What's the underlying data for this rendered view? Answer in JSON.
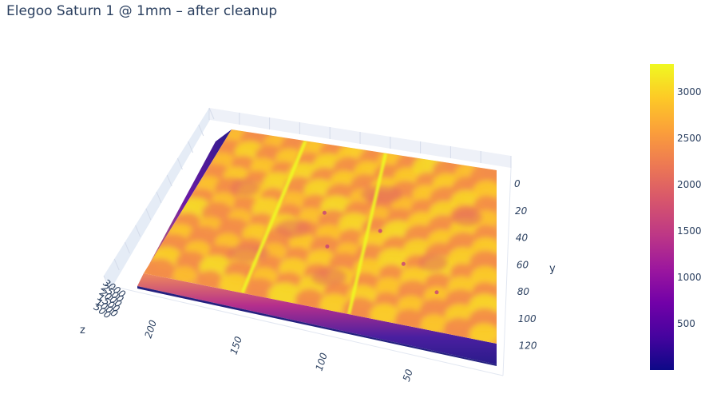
{
  "title": "Elegoo Saturn 1 @ 1mm – after cleanup",
  "chart_data": {
    "type": "surface",
    "title": "Elegoo Saturn 1 @ 1mm – after cleanup",
    "x_axis": {
      "label": "",
      "ticks": [
        "200",
        "150",
        "100",
        "50"
      ],
      "range": [
        0,
        215
      ]
    },
    "y_axis": {
      "label": "y",
      "ticks": [
        "0",
        "20",
        "40",
        "60",
        "80",
        "100",
        "120"
      ],
      "range": [
        0,
        128
      ]
    },
    "z_axis": {
      "label": "z",
      "ticks": [
        "3000",
        "2500",
        "2000",
        "1500",
        "1000",
        "500"
      ],
      "range": [
        0,
        3300
      ]
    },
    "colorscale": "plasma",
    "colorbar": {
      "ticks": [
        "3000",
        "2500",
        "2000",
        "1500",
        "1000",
        "500"
      ],
      "min": 0,
      "max": 3300
    },
    "surface_summary": {
      "base_level": 0,
      "typical_height": 2650,
      "max_height": 3300,
      "ridges_at_x": [
        155,
        90
      ],
      "bumps_grid": [
        7,
        6
      ]
    },
    "legend": "right",
    "grid": true
  }
}
